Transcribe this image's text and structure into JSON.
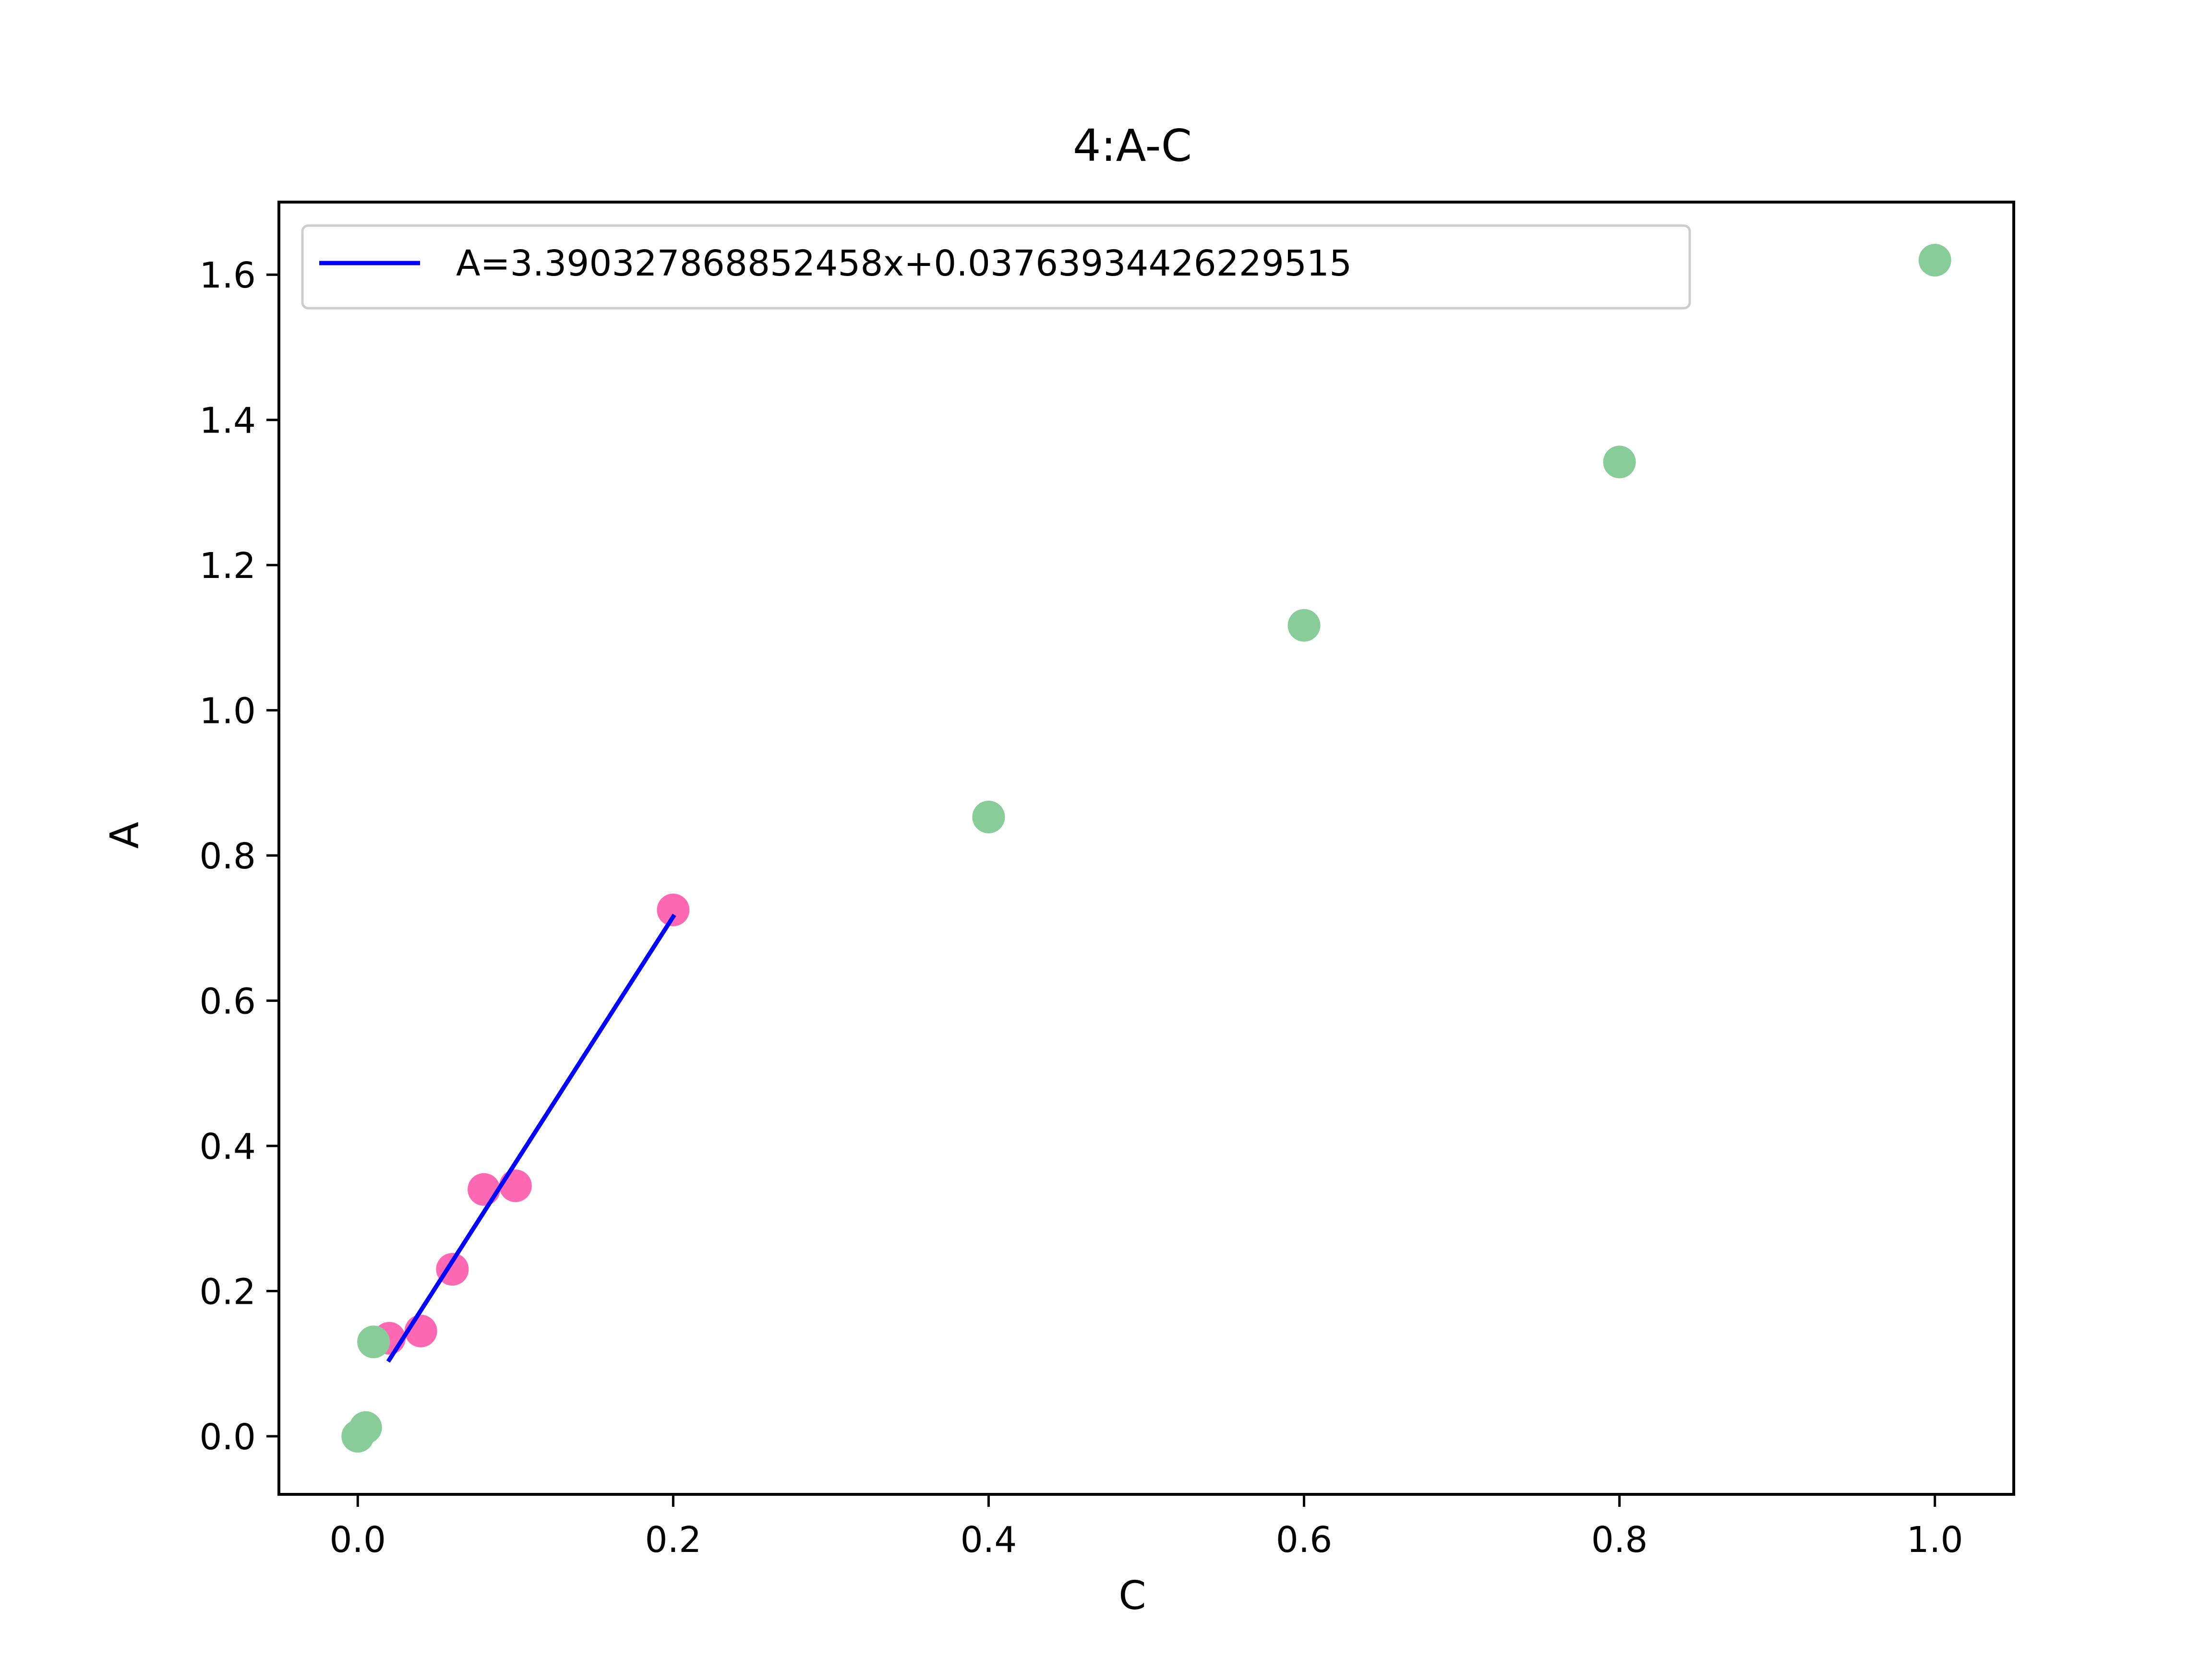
{
  "chart_data": {
    "type": "scatter",
    "title": "4:A-C",
    "xlabel": "C",
    "ylabel": "A",
    "xlim": [
      -0.05,
      1.05
    ],
    "ylim": [
      -0.08,
      1.7
    ],
    "xticks": [
      0.0,
      0.2,
      0.4,
      0.6,
      0.8,
      1.0
    ],
    "xtick_labels": [
      "0.0",
      "0.2",
      "0.4",
      "0.6",
      "0.8",
      "1.0"
    ],
    "yticks": [
      0.0,
      0.2,
      0.4,
      0.6,
      0.8,
      1.0,
      1.2,
      1.4,
      1.6
    ],
    "ytick_labels": [
      "0.0",
      "0.2",
      "0.4",
      "0.6",
      "0.8",
      "1.0",
      "1.2",
      "1.4",
      "1.6"
    ],
    "grid": false,
    "legend_position": "upper-left",
    "colors": {
      "fit_line": "#0000ff",
      "fit_points": "#ff69b4",
      "all_points": "#88cc99",
      "frame": "#000000"
    },
    "series": [
      {
        "kind": "scatter",
        "color": "#ff69b4",
        "points": [
          {
            "x": 0.02,
            "y": 0.135
          },
          {
            "x": 0.04,
            "y": 0.145
          },
          {
            "x": 0.06,
            "y": 0.23
          },
          {
            "x": 0.08,
            "y": 0.34
          },
          {
            "x": 0.1,
            "y": 0.345
          },
          {
            "x": 0.2,
            "y": 0.725
          }
        ]
      },
      {
        "kind": "scatter",
        "color": "#88cc99",
        "points": [
          {
            "x": 0.0,
            "y": 0.0
          },
          {
            "x": 0.005,
            "y": 0.012
          },
          {
            "x": 0.01,
            "y": 0.13
          },
          {
            "x": 0.4,
            "y": 0.853
          },
          {
            "x": 0.6,
            "y": 1.117
          },
          {
            "x": 0.8,
            "y": 1.342
          },
          {
            "x": 1.0,
            "y": 1.62
          }
        ]
      },
      {
        "kind": "line",
        "name": "A=3.390327868852458x+0.03763934426229515",
        "color": "#0000ff",
        "slope": 3.390327868852458,
        "intercept": 0.03763934426229515,
        "x_range": [
          0.02,
          0.2
        ]
      }
    ]
  }
}
